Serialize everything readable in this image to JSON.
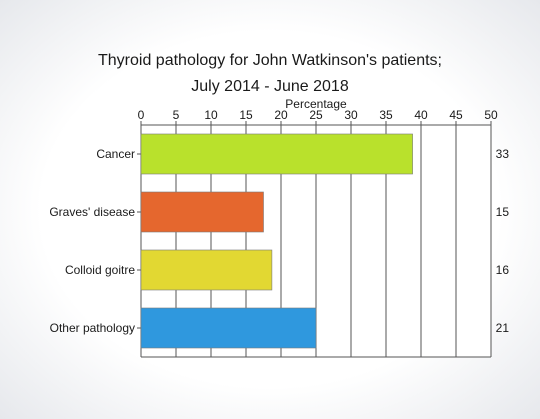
{
  "chart_data": {
    "type": "bar",
    "orientation": "horizontal",
    "title": "Thyroid pathology for John Watkinson's patients;",
    "subtitle": "July 2014 - June 2018",
    "xlabel": "Percentage",
    "xlim": [
      0,
      50
    ],
    "xticks": [
      "0",
      "5",
      "10",
      "15",
      "20",
      "25",
      "30",
      "35",
      "40",
      "45",
      "50"
    ],
    "categories": [
      "Cancer",
      "Graves' disease",
      "Colloid goitre",
      "Other pathology"
    ],
    "values": [
      38.8,
      17.5,
      18.7,
      25.0
    ],
    "counts": [
      "33",
      "15",
      "16",
      "21"
    ],
    "colors": [
      "#b9e12c",
      "#e5672e",
      "#e2d832",
      "#2f98de"
    ],
    "grid": true,
    "legend": "none"
  }
}
